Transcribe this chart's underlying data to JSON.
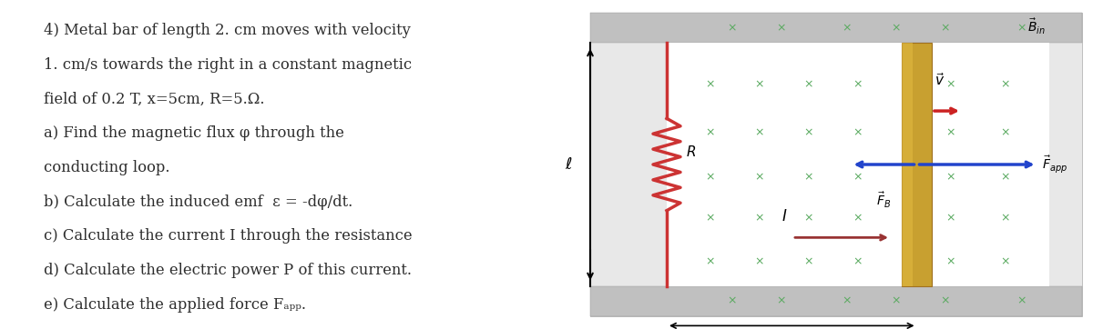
{
  "bg_color": "#ffffff",
  "text_color": "#2d2d2d",
  "title_lines": [
    "4) Metal bar of length 2. cm moves with velocity",
    "1. cm/s towards the right in a constant magnetic",
    "field of 0.2 T, x=5cm, R=5.Ω.",
    "a) Find the magnetic flux φ through the",
    "conducting loop.",
    "b) Calculate the induced emf  ε = -dφ/dt.",
    "c) Calculate the current I through the resistance",
    "d) Calculate the electric power P of this current.",
    "e) Calculate the applied force Fₐₚₚ."
  ],
  "x_marks_color": "#5aaa60",
  "bar_color_main": "#c8a030",
  "bar_color_light": "#e0b840",
  "resistor_color": "#cc3333",
  "wire_color": "#cc3333",
  "arrow_red": "#cc2222",
  "arrow_blue": "#2244cc",
  "arrow_dark": "#993333"
}
